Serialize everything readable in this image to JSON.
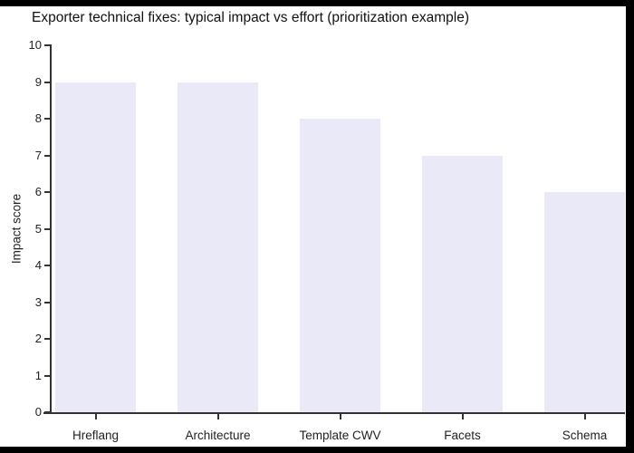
{
  "title": "Exporter technical fixes: typical impact vs effort (prioritization example)",
  "chart_data": {
    "type": "bar",
    "title": "Exporter technical fixes: typical impact vs effort (prioritization example)",
    "categories": [
      "Hreflang",
      "Architecture",
      "Template CWV",
      "Facets",
      "Schema"
    ],
    "values": [
      9,
      9,
      8,
      7,
      6
    ],
    "xlabel": "",
    "ylabel": "Impact score",
    "ylim": [
      0,
      10
    ],
    "ytick_step": 1,
    "grid": false,
    "legend": "none",
    "colors": {
      "bar_fill": "#e9e9f8",
      "axis": "#333333",
      "text": "#222222",
      "plot_background": "#ffffff",
      "frame_background": "#000000"
    }
  }
}
